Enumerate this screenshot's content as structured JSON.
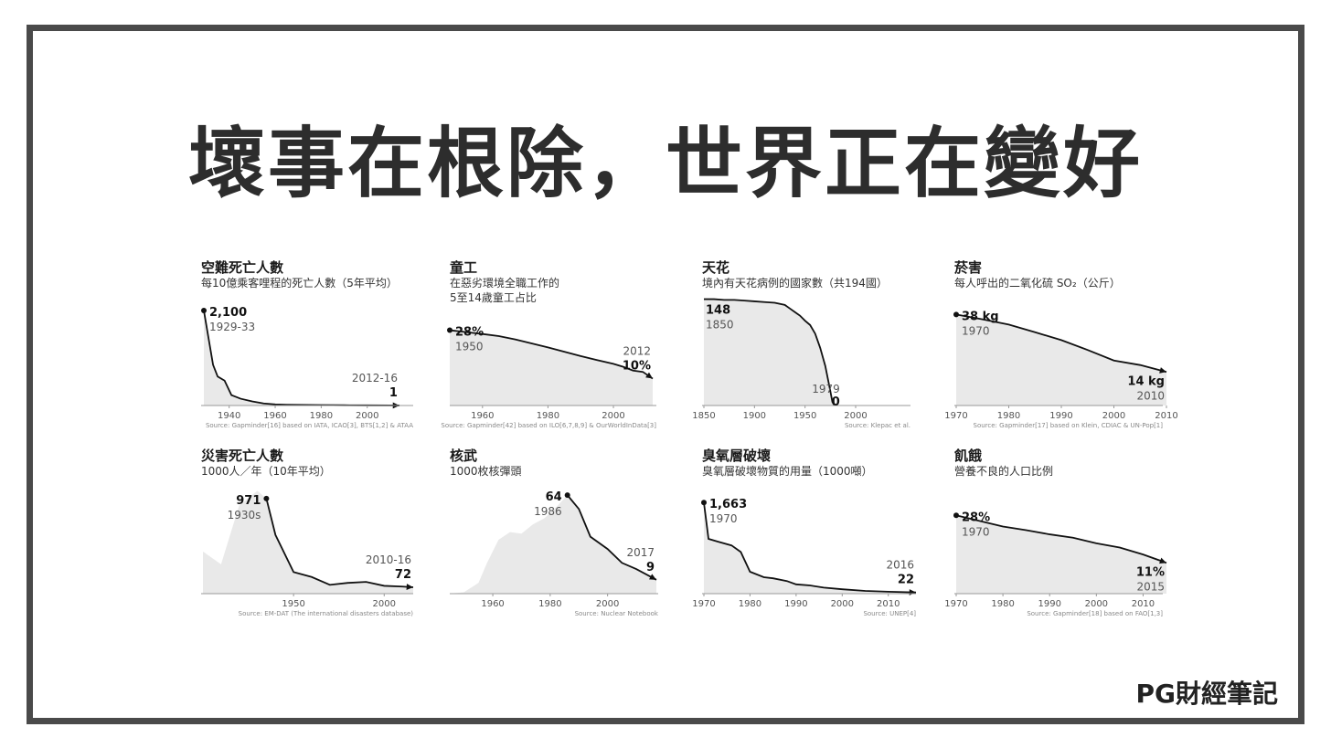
{
  "title": "壞事在根除，世界正在變好",
  "brand": "PG財經筆記",
  "chart_data": [
    {
      "type": "area",
      "title": "空難死亡人數",
      "subtitle": "每10億乘客哩程的死亡人數（5年平均）",
      "source": "Source: Gapminder[16] based on IATA, ICAO[3], BTS[1,2] & ATAA",
      "xlim": [
        1929,
        2016
      ],
      "ylim": [
        0,
        2100
      ],
      "xticks": [
        1940,
        1960,
        1980,
        2000
      ],
      "x": [
        1929,
        1931,
        1933,
        1935,
        1938,
        1941,
        1945,
        1950,
        1955,
        1960,
        1965,
        1970,
        1980,
        1990,
        2000,
        2010,
        2014
      ],
      "y": [
        2100,
        1500,
        900,
        640,
        550,
        230,
        150,
        90,
        45,
        25,
        18,
        14,
        10,
        6,
        4,
        2,
        1
      ],
      "start_label": {
        "value": "2,100",
        "year": "1929-33"
      },
      "end_label": {
        "value": "1",
        "year": "2012-16"
      },
      "start_marker": true,
      "end_arrow": true
    },
    {
      "type": "area",
      "title": "童工",
      "subtitle": "在惡劣環境全職工作的\n5至14歲童工占比",
      "source": "Source: Gapminder[42] based on ILO[6,7,8,9] & OurWorldInData[3]",
      "xlim": [
        1950,
        2012
      ],
      "ylim": [
        0,
        36
      ],
      "xticks": [
        1960,
        1980,
        2000
      ],
      "x": [
        1950,
        1955,
        1960,
        1965,
        1970,
        1975,
        1980,
        1985,
        1990,
        1995,
        2000,
        2003,
        2006,
        2009,
        2012
      ],
      "y": [
        28,
        27.3,
        26.6,
        25.8,
        24.6,
        23.1,
        21.6,
        20,
        18.4,
        16.9,
        15.5,
        14.4,
        13,
        12.5,
        10
      ],
      "start_label": {
        "value": "28%",
        "year": "1950"
      },
      "end_label": {
        "value": "10%",
        "year": "2012"
      },
      "start_marker": true,
      "end_arrow": true
    },
    {
      "type": "area",
      "title": "天花",
      "subtitle": "境內有天花病例的國家數（共194國）",
      "source": "Source: Klepac et al.",
      "xlim": [
        1850,
        2000
      ],
      "ylim": [
        0,
        150
      ],
      "xticks": [
        1850,
        1900,
        1950,
        2000
      ],
      "x": [
        1850,
        1860,
        1870,
        1880,
        1890,
        1900,
        1910,
        1920,
        1930,
        1935,
        1940,
        1945,
        1950,
        1955,
        1960,
        1965,
        1970,
        1975,
        1977,
        1979
      ],
      "y": [
        148,
        148,
        147,
        147,
        146,
        145,
        144,
        143,
        140,
        135,
        130,
        125,
        118,
        112,
        100,
        80,
        55,
        20,
        5,
        0
      ],
      "start_label": {
        "value": "148",
        "year": "1850"
      },
      "end_label": {
        "value": "0",
        "year": "1979"
      },
      "start_marker": false,
      "end_arrow": false
    },
    {
      "type": "area",
      "title": "菸害",
      "subtitle": "每人呼出的二氧化硫 SO₂（公斤）",
      "source": "Source: Gapminder[17] based on Klein, CDIAC & UN-Pop[1]",
      "xlim": [
        1970,
        2010
      ],
      "ylim": [
        0,
        45
      ],
      "xticks": [
        1970,
        1980,
        1990,
        2000,
        2010
      ],
      "x": [
        1970,
        1975,
        1980,
        1985,
        1990,
        1995,
        2000,
        2005,
        2010
      ],
      "y": [
        38,
        36,
        33.8,
        30.6,
        27.3,
        23.2,
        18.8,
        16.9,
        14
      ],
      "start_label": {
        "value": "38 kg",
        "year": "1970"
      },
      "end_label": {
        "value": "14 kg",
        "year": "2010"
      },
      "start_marker": true,
      "end_arrow": true
    },
    {
      "type": "area",
      "title": "災害死亡人數",
      "subtitle": "1000人／年（10年平均）",
      "source": "Source: EM-DAT (The international disasters database)",
      "xlim": [
        1900,
        2016
      ],
      "ylim": [
        0,
        1100
      ],
      "xticks": [
        1950,
        2000
      ],
      "x": [
        1900,
        1910,
        1920,
        1930,
        1935,
        1940,
        1950,
        1960,
        1970,
        1980,
        1990,
        2000,
        2010,
        2016
      ],
      "y": [
        430,
        300,
        900,
        1050,
        971,
        600,
        220,
        170,
        90,
        110,
        120,
        80,
        72,
        65
      ],
      "area_only_until": 1935,
      "start_label": {
        "value": "971",
        "year": "1930s"
      },
      "end_label": {
        "value": "72",
        "year": "2010-16"
      },
      "start_marker": true,
      "end_arrow": true
    },
    {
      "type": "area",
      "title": "核武",
      "subtitle": "1000枚核彈頭",
      "source": "Source: Nuclear Notebook",
      "xlim": [
        1945,
        2017
      ],
      "ylim": [
        0,
        70
      ],
      "xticks": [
        1960,
        1980,
        2000
      ],
      "x": [
        1945,
        1950,
        1955,
        1958,
        1962,
        1966,
        1970,
        1974,
        1978,
        1982,
        1986,
        1990,
        1994,
        2000,
        2005,
        2010,
        2017
      ],
      "y": [
        0,
        1,
        7,
        20,
        35,
        40,
        39,
        45,
        49,
        56,
        64,
        55,
        37,
        29,
        20,
        16,
        9
      ],
      "area_only_until": 1986,
      "start_label": {
        "value": "64",
        "year": "1986"
      },
      "end_label": {
        "value": "9",
        "year": "2017"
      },
      "start_marker": true,
      "end_arrow": true
    },
    {
      "type": "area",
      "title": "臭氧層破壞",
      "subtitle": "臭氧層破壞物質的用量（1000噸）",
      "source": "Source: UNEP[4]",
      "xlim": [
        1970,
        2016
      ],
      "ylim": [
        0,
        1700
      ],
      "xticks": [
        1970,
        1980,
        1990,
        2000,
        2010
      ],
      "x": [
        1970,
        1971,
        1973,
        1976,
        1978,
        1980,
        1983,
        1985,
        1988,
        1990,
        1993,
        1996,
        2000,
        2005,
        2010,
        2016
      ],
      "y": [
        1663,
        1000,
        950,
        880,
        760,
        400,
        300,
        280,
        230,
        170,
        150,
        110,
        80,
        50,
        35,
        22
      ],
      "start_label": {
        "value": "1,663",
        "year": "1970"
      },
      "end_label": {
        "value": "22",
        "year": "2016"
      },
      "start_marker": true,
      "end_arrow": true
    },
    {
      "type": "area",
      "title": "飢餓",
      "subtitle": "營養不良的人口比例",
      "source": "Source: Gapminder[18] based on FAO[1,3]",
      "xlim": [
        1970,
        2015
      ],
      "ylim": [
        0,
        32
      ],
      "xticks": [
        1970,
        1980,
        1990,
        2000,
        2010
      ],
      "x": [
        1970,
        1975,
        1980,
        1985,
        1990,
        1995,
        2000,
        2005,
        2010,
        2015
      ],
      "y": [
        28,
        26,
        24,
        22.7,
        21.2,
        20,
        18,
        16.5,
        14,
        11
      ],
      "start_label": {
        "value": "28%",
        "year": "1970"
      },
      "end_label": {
        "value": "11%",
        "year": "2015"
      },
      "start_marker": true,
      "end_arrow": true
    }
  ]
}
